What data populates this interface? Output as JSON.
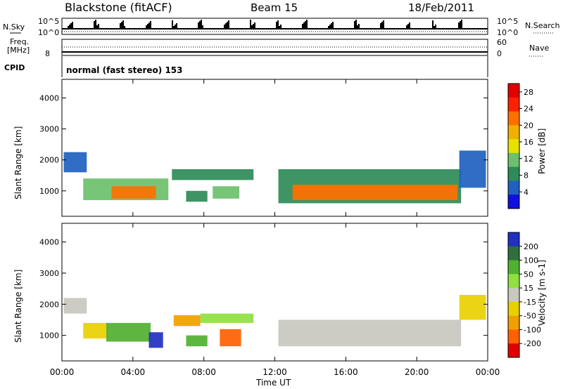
{
  "header": {
    "station": "Blackstone (fitACF)",
    "beam": "Beam 15",
    "date": "18/Feb/2011"
  },
  "top_panels": {
    "nsky_label": "N.Sky",
    "nsky_ticks": [
      "10^5",
      "10^0"
    ],
    "nsearch_label": "N.Search",
    "freq_label_1": "Freq.",
    "freq_label_2": "[MHz]",
    "freq_ticks": [
      "8",
      "60",
      "0"
    ],
    "nave_label": "Nave",
    "cpid_label": "CPID",
    "cpid_text": "normal (fast stereo) 153",
    "right_ticks_top": [
      "10^5",
      "10^0"
    ],
    "right_ticks_mid": [
      "60",
      "0"
    ]
  },
  "chart_data": [
    {
      "type": "heatmap",
      "panel": "power",
      "ylabel": "Slant Range [km]",
      "xlabel": "Time UT",
      "x_ticks": [
        "00:00",
        "04:00",
        "08:00",
        "12:00",
        "16:00",
        "20:00",
        "00:00"
      ],
      "x_range_hours": [
        0,
        24
      ],
      "y_ticks": [
        "1000",
        "2000",
        "3000",
        "4000"
      ],
      "ylim": [
        180,
        4600
      ],
      "colorbar": {
        "label": "Power [dB]",
        "ticks": [
          "4",
          "8",
          "12",
          "16",
          "20",
          "24",
          "28"
        ],
        "range": [
          0,
          30
        ],
        "colors": [
          "#1010e0",
          "#2060c0",
          "#2e8b57",
          "#6cc06c",
          "#e8e000",
          "#f0b000",
          "#ff7000",
          "#ff2000",
          "#e00000"
        ]
      },
      "regions": [
        {
          "t0": 0.1,
          "t1": 1.4,
          "r0": 1600,
          "r1": 2250,
          "value": 6
        },
        {
          "t0": 1.2,
          "t1": 6.0,
          "r0": 700,
          "r1": 1400,
          "value": 10
        },
        {
          "t0": 2.8,
          "t1": 5.3,
          "r0": 750,
          "r1": 1150,
          "value": 20
        },
        {
          "t0": 6.2,
          "t1": 10.8,
          "r0": 1350,
          "r1": 1700,
          "value": 9
        },
        {
          "t0": 7.0,
          "t1": 8.2,
          "r0": 650,
          "r1": 1000,
          "value": 8
        },
        {
          "t0": 8.5,
          "t1": 10.0,
          "r0": 750,
          "r1": 1150,
          "value": 10
        },
        {
          "t0": 12.2,
          "t1": 22.5,
          "r0": 600,
          "r1": 1700,
          "value": 9
        },
        {
          "t0": 13.0,
          "t1": 22.3,
          "r0": 700,
          "r1": 1200,
          "value": 22
        },
        {
          "t0": 22.4,
          "t1": 23.9,
          "r0": 1100,
          "r1": 2300,
          "value": 6
        }
      ]
    },
    {
      "type": "heatmap",
      "panel": "velocity",
      "ylabel": "Slant Range [km]",
      "xlabel": "Time UT",
      "x_ticks": [
        "00:00",
        "04:00",
        "08:00",
        "12:00",
        "16:00",
        "20:00",
        "00:00"
      ],
      "x_range_hours": [
        0,
        24
      ],
      "y_ticks": [
        "1000",
        "2000",
        "3000",
        "4000"
      ],
      "ylim": [
        180,
        4600
      ],
      "colorbar": {
        "label": "Velocity [m s-1]",
        "ticks": [
          "200",
          "100",
          "50",
          "15",
          "-15",
          "-50",
          "-100",
          "-200"
        ],
        "colors": [
          "#2030c0",
          "#2f6f3f",
          "#50b030",
          "#90e040",
          "#c8c8c0",
          "#e8d000",
          "#f0a000",
          "#ff6000",
          "#e00000"
        ]
      },
      "regions": [
        {
          "t0": 0.1,
          "t1": 1.4,
          "r0": 1700,
          "r1": 2200,
          "value": 0
        },
        {
          "t0": 1.2,
          "t1": 2.6,
          "r0": 900,
          "r1": 1400,
          "value": -40
        },
        {
          "t0": 2.5,
          "t1": 5.0,
          "r0": 800,
          "r1": 1400,
          "value": 60
        },
        {
          "t0": 4.9,
          "t1": 5.7,
          "r0": 600,
          "r1": 1100,
          "value": 200
        },
        {
          "t0": 6.3,
          "t1": 7.8,
          "r0": 1300,
          "r1": 1650,
          "value": -60
        },
        {
          "t0": 7.8,
          "t1": 10.8,
          "r0": 1400,
          "r1": 1700,
          "value": 30
        },
        {
          "t0": 7.0,
          "t1": 8.2,
          "r0": 650,
          "r1": 1000,
          "value": 50
        },
        {
          "t0": 8.9,
          "t1": 10.1,
          "r0": 650,
          "r1": 1200,
          "value": -150
        },
        {
          "t0": 12.2,
          "t1": 22.5,
          "r0": 650,
          "r1": 1500,
          "value": 0
        },
        {
          "t0": 22.4,
          "t1": 23.9,
          "r0": 1500,
          "r1": 2300,
          "value": -40
        }
      ]
    }
  ]
}
